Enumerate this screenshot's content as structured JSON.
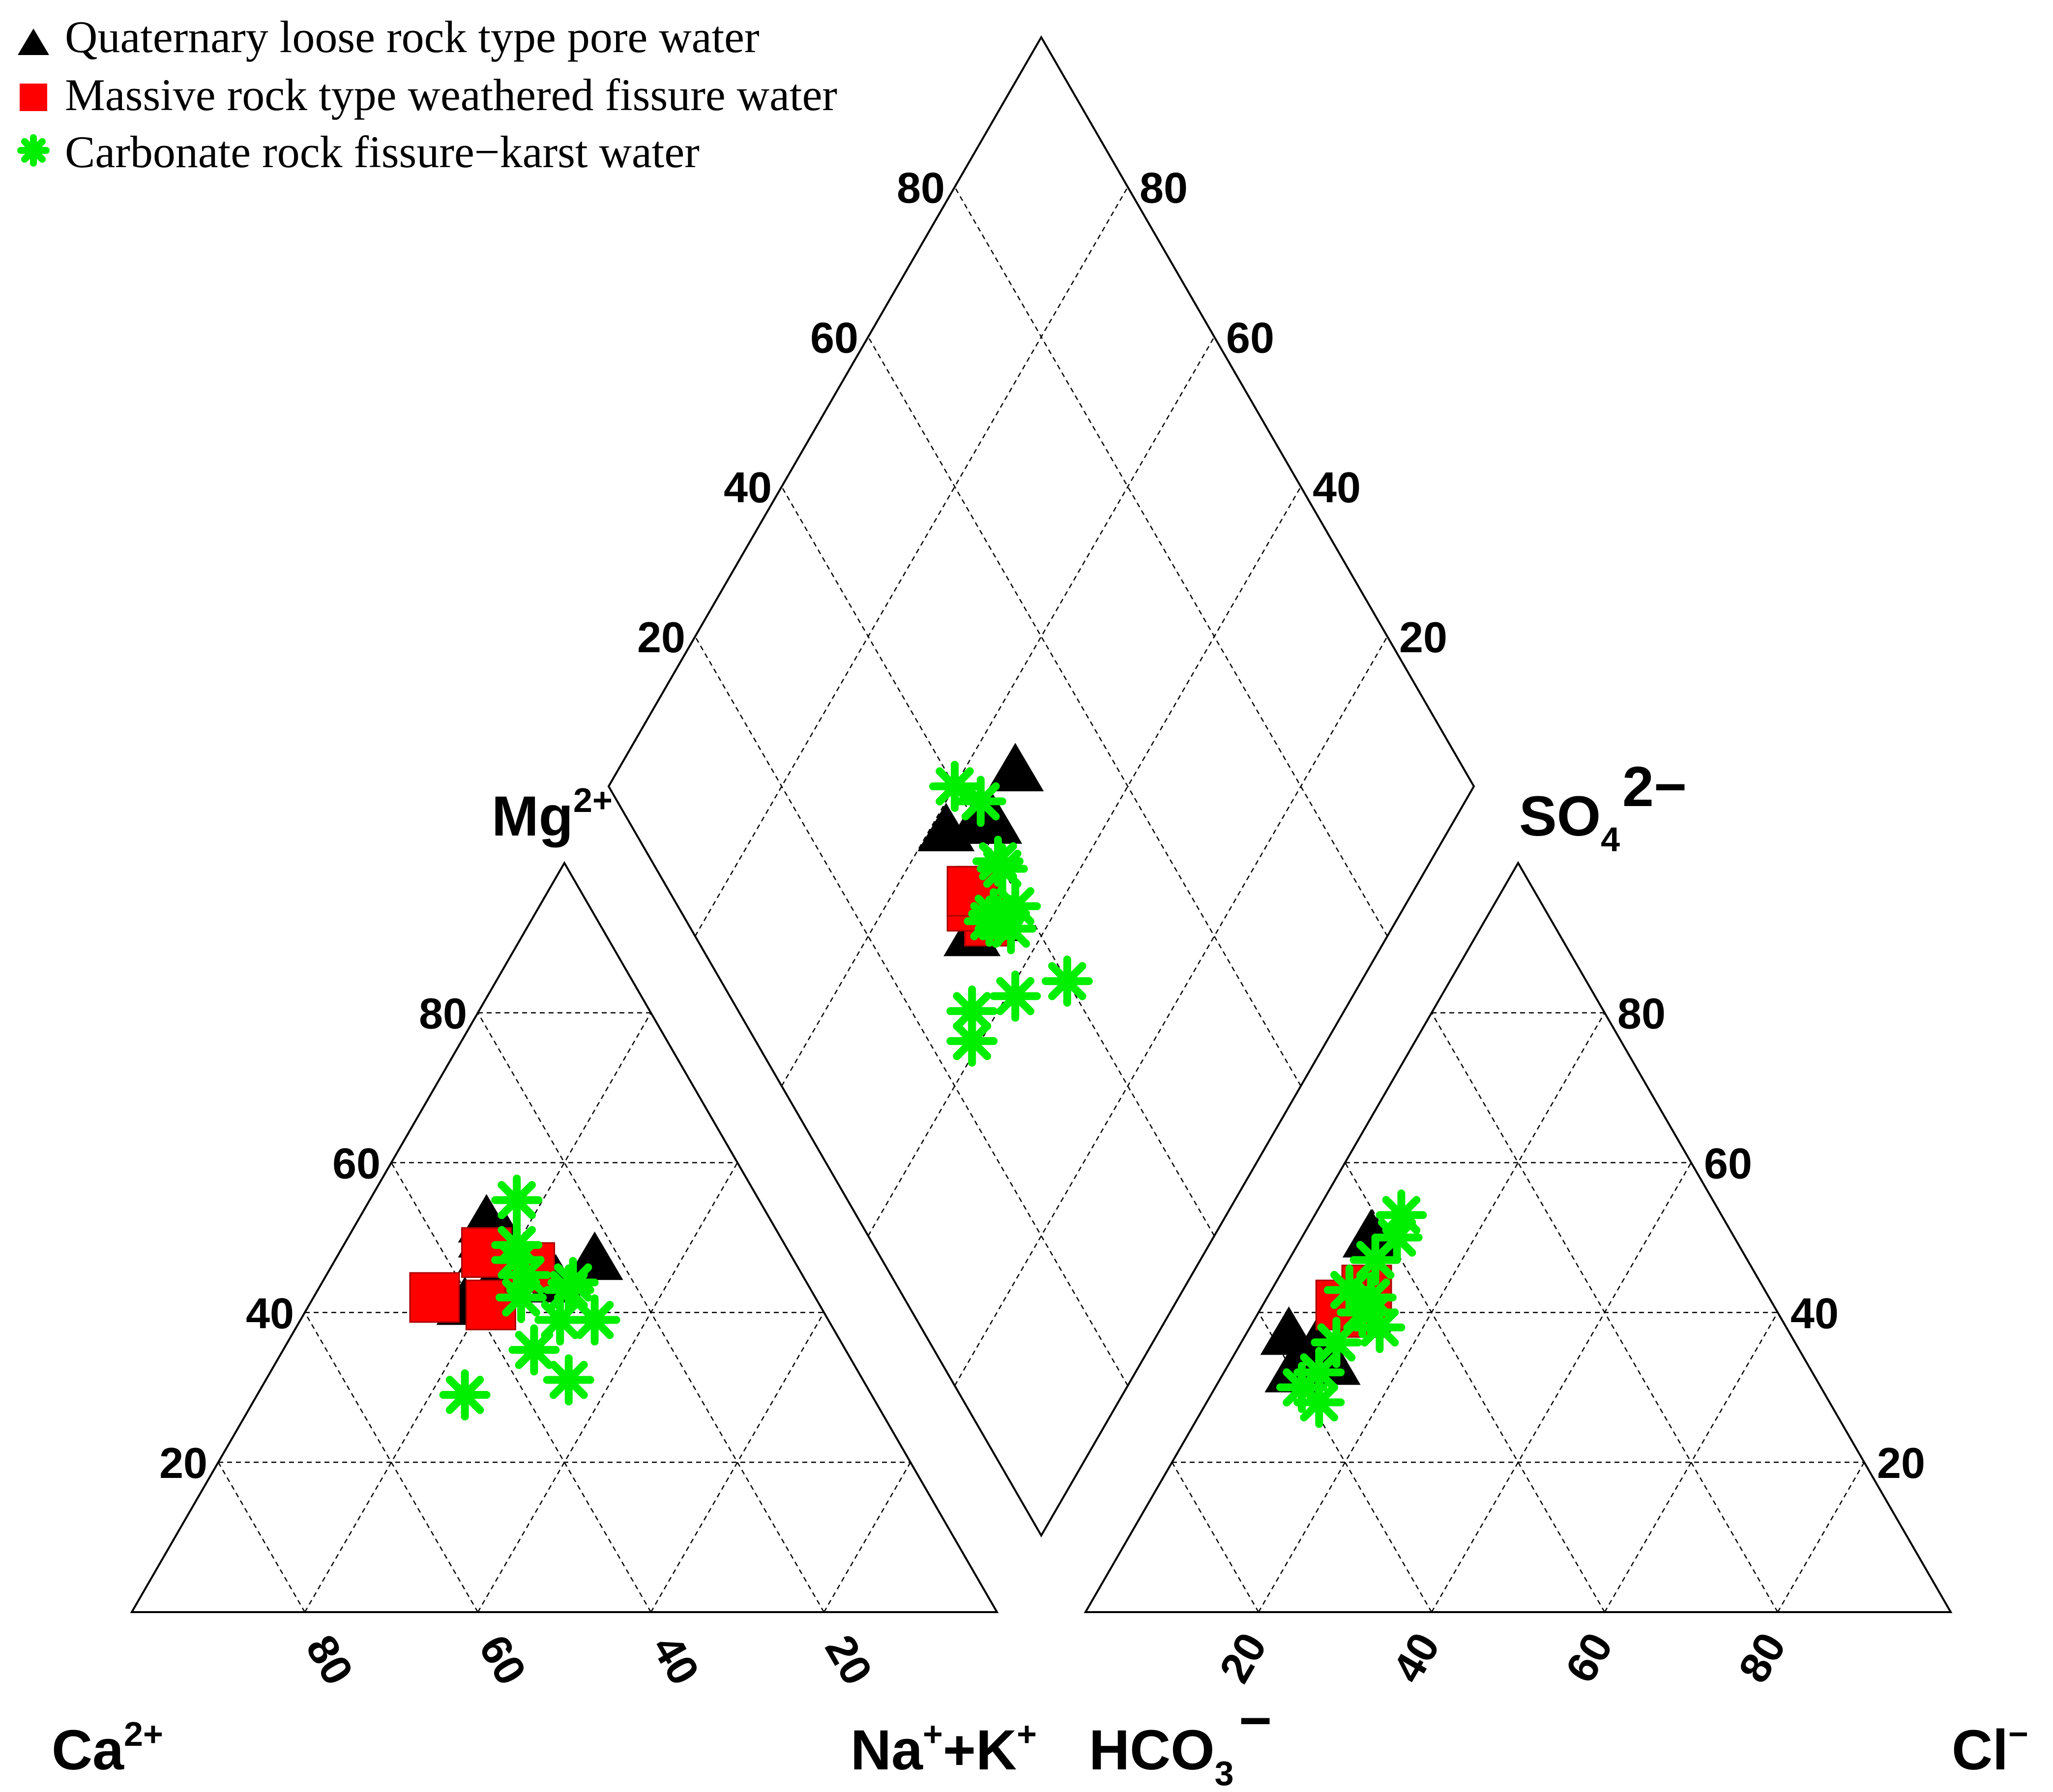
{
  "chart_data": {
    "type": "scatter",
    "subtype": "piper-diagram",
    "legend": {
      "placement": "top-left",
      "entries": [
        {
          "label": "Quaternary loose rock type pore water",
          "marker": "triangle",
          "color": "#000000"
        },
        {
          "label": "Massive rock type weathered fissure water",
          "marker": "square",
          "color": "#ff0000"
        },
        {
          "label": "Carbonate rock fissure−karst water",
          "marker": "asterisk",
          "color": "#00ff00"
        }
      ]
    },
    "axis_labels": {
      "mg": {
        "base": "Mg",
        "sup": "2+"
      },
      "so4": {
        "base": "SO",
        "sub": "4",
        "sup": "2−"
      },
      "ca": {
        "base": "Ca",
        "sup": "2+"
      },
      "nak": {
        "base": "Na",
        "sup1": "+",
        "mid": "+K",
        "sup2": "+"
      },
      "hco3": {
        "base": "HCO",
        "sub": "3",
        "sup": "−"
      },
      "cl": {
        "base": "Cl",
        "sup": "−"
      }
    },
    "ticks": {
      "diamond_left": [
        "20",
        "40",
        "60",
        "80"
      ],
      "diamond_right": [
        "20",
        "40",
        "60",
        "80"
      ],
      "cation_mg": [
        "20",
        "40",
        "60",
        "80"
      ],
      "cation_bottom": [
        "80",
        "60",
        "40",
        "20"
      ],
      "anion_so4": [
        "20",
        "40",
        "60",
        "80"
      ],
      "anion_bottom": [
        "20",
        "40",
        "60",
        "80"
      ]
    },
    "grid": "dashed 20% intervals",
    "units": "percent of meq/L",
    "series": [
      {
        "name": "Quaternary loose rock type pore water",
        "cation_mg_ca_pct": [
          [
            41,
            41
          ],
          [
            44,
            36
          ],
          [
            50,
            32
          ],
          [
            50,
            34
          ],
          [
            52,
            33
          ],
          [
            44,
            29
          ],
          [
            47,
            23
          ],
          [
            48,
            35
          ]
        ],
        "anion_so4_cl_pct": [
          [
            50,
            8
          ],
          [
            37,
            5
          ],
          [
            32,
            8
          ],
          [
            33,
            12
          ],
          [
            34,
            11
          ],
          [
            40,
            12
          ],
          [
            36,
            9
          ],
          [
            42,
            10
          ]
        ],
        "diamond_mgplusk_so4pcl_pct": [
          [
            58,
            36
          ],
          [
            54,
            48
          ],
          [
            53,
            42
          ],
          [
            55,
            40
          ],
          [
            54,
            42
          ],
          [
            47,
            35
          ],
          [
            48,
            32
          ]
        ]
      },
      {
        "name": "Massive rock type weathered fissure water",
        "cation_mg_ca_pct": [
          [
            41,
            38
          ],
          [
            46,
            31
          ],
          [
            48,
            35
          ],
          [
            48,
            35
          ],
          [
            42,
            44
          ]
        ],
        "anion_so4_cl_pct": [
          [
            40,
            12
          ],
          [
            43,
            11
          ],
          [
            41,
            9
          ]
        ],
        "diamond_mgplusk_so4pcl_pct": [
          [
            50,
            36
          ],
          [
            47,
            35
          ],
          [
            50,
            34
          ],
          [
            51,
            35
          ]
        ]
      },
      {
        "name": "Carbonate rock fissure−karst water",
        "cation_mg_ca_pct": [
          [
            31,
            34
          ],
          [
            29,
            47
          ],
          [
            44,
            27
          ],
          [
            35,
            36
          ],
          [
            39,
            31
          ],
          [
            39,
            27
          ],
          [
            42,
            34
          ],
          [
            45,
            32
          ],
          [
            43,
            28
          ],
          [
            47,
            32
          ],
          [
            49,
            31
          ],
          [
            55,
            28
          ]
        ],
        "anion_so4_cl_pct": [
          [
            42,
            12
          ],
          [
            40,
            12
          ],
          [
            47,
            10
          ],
          [
            43,
            9
          ],
          [
            40,
            13
          ],
          [
            50,
            11
          ],
          [
            38,
            15
          ],
          [
            30,
            10
          ],
          [
            36,
            11
          ],
          [
            28,
            13
          ],
          [
            32,
            11
          ],
          [
            36,
            11
          ],
          [
            53,
            10
          ]
        ],
        "diamond_mgplusk_so4pcl_pct": [
          [
            60,
            40
          ],
          [
            56,
            42
          ],
          [
            50,
            40
          ],
          [
            49,
            40
          ],
          [
            47,
            36
          ],
          [
            46,
            36
          ],
          [
            45,
            39
          ],
          [
            44,
            37
          ],
          [
            47,
            35
          ],
          [
            43,
            27
          ],
          [
            41,
            25
          ],
          [
            39,
            33
          ],
          [
            34,
            40
          ]
        ]
      }
    ]
  }
}
